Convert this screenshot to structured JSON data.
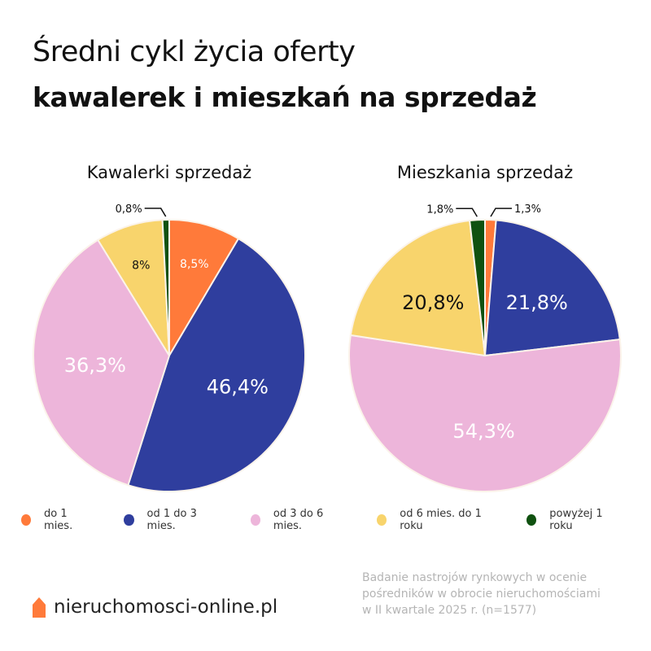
{
  "header": {
    "title_line1": "Średni cykl życia oferty",
    "title_line2": "kawalerek i mieszkań na sprzedaż"
  },
  "colors": {
    "do_1": "#FF7A3A",
    "od_1_3": "#2F3E9E",
    "od_3_6": "#EDB5DA",
    "od_6_12": "#F8D46C",
    "pow_1": "#0F5110"
  },
  "chart_data": [
    {
      "type": "pie",
      "title": "Kawalerki sprzedaż",
      "labels": [
        "do 1 mies.",
        "od 1 do 3 mies.",
        "od 3 do 6 mies.",
        "od 6 mies. do 1 roku",
        "powyżej 1 roku"
      ],
      "values": [
        8.5,
        46.4,
        36.3,
        8,
        0.8
      ],
      "value_labels": [
        "8,5%",
        "46,4%",
        "36,3%",
        "8%",
        "0,8%"
      ]
    },
    {
      "type": "pie",
      "title": "Mieszkania sprzedaż",
      "labels": [
        "do 1 mies.",
        "od 1 do 3 mies.",
        "od 3 do 6 mies.",
        "od 6 mies. do 1 roku",
        "powyżej 1 roku"
      ],
      "values": [
        1.3,
        21.8,
        54.3,
        20.8,
        1.8
      ],
      "value_labels": [
        "1,3%",
        "21,8%",
        "54,3%",
        "20,8%",
        "1,8%"
      ]
    }
  ],
  "legend": [
    {
      "label": "do 1 mies.",
      "color": "#FF7A3A"
    },
    {
      "label": "od 1 do 3 mies.",
      "color": "#2F3E9E"
    },
    {
      "label": "od 3 do 6 mies.",
      "color": "#EDB5DA"
    },
    {
      "label": "od 6 mies. do 1 roku",
      "color": "#F8D46C"
    },
    {
      "label": "powyżej 1 roku",
      "color": "#0F5110"
    }
  ],
  "footer": {
    "logo_text": "nieruchomosci-online.pl",
    "source_lines": [
      "Badanie nastrojów rynkowych w ocenie",
      "pośredników w obrocie nieruchomościami",
      "w II kwartale 2025 r. (n=1577)"
    ]
  }
}
